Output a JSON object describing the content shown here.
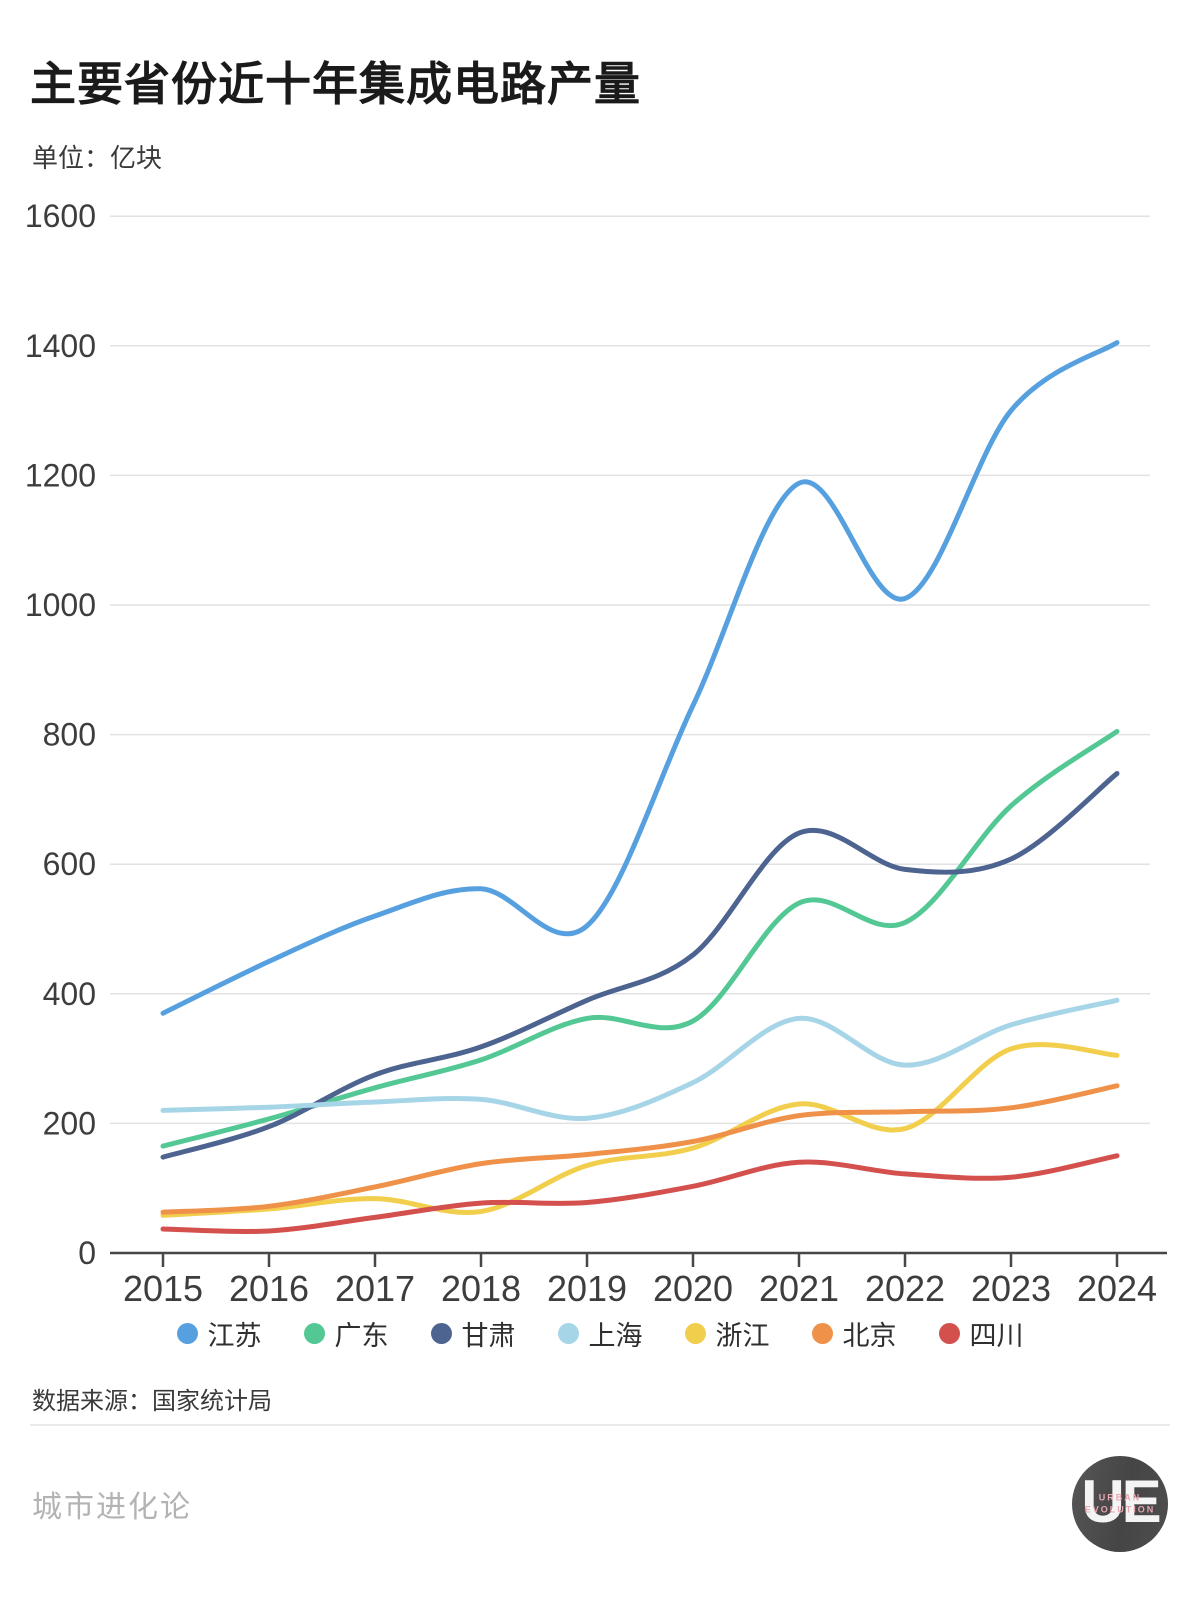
{
  "title": "主要省份近十年集成电路产量",
  "unit_label": "单位：亿块",
  "source_label": "数据来源：国家统计局",
  "watermark": "城市进化论",
  "logo": {
    "monogram": "UE",
    "line1": "URBAN",
    "line2": "EVOLUTION"
  },
  "chart_data": {
    "type": "line",
    "title": "主要省份近十年集成电路产量",
    "ylabel": "亿块",
    "x": [
      2015,
      2016,
      2017,
      2018,
      2019,
      2020,
      2021,
      2022,
      2023,
      2024
    ],
    "series": [
      {
        "name": "江苏",
        "color": "#57A0E0",
        "values": [
          370,
          450,
          520,
          562,
          505,
          845,
          1188,
          1010,
          1300,
          1405
        ]
      },
      {
        "name": "广东",
        "color": "#53C894",
        "values": [
          165,
          207,
          255,
          298,
          362,
          358,
          540,
          510,
          690,
          805
        ]
      },
      {
        "name": "甘肃",
        "color": "#4D6390",
        "values": [
          148,
          195,
          275,
          318,
          390,
          460,
          648,
          592,
          608,
          740
        ]
      },
      {
        "name": "上海",
        "color": "#A7D5E8",
        "values": [
          220,
          225,
          233,
          237,
          208,
          263,
          362,
          290,
          352,
          390
        ]
      },
      {
        "name": "浙江",
        "color": "#F2CE4D",
        "values": [
          58,
          68,
          84,
          64,
          135,
          162,
          230,
          192,
          315,
          305
        ]
      },
      {
        "name": "北京",
        "color": "#EF9149",
        "values": [
          63,
          72,
          102,
          138,
          152,
          172,
          212,
          218,
          224,
          258
        ]
      },
      {
        "name": "四川",
        "color": "#D3504D",
        "values": [
          37,
          34,
          55,
          77,
          78,
          103,
          140,
          122,
          117,
          150
        ]
      }
    ],
    "ylim": [
      0,
      1600
    ],
    "y_ticks": [
      0,
      200,
      400,
      600,
      800,
      1000,
      1200,
      1400,
      1600
    ],
    "grid": true,
    "legend_position": "bottom",
    "line_style": "smooth"
  },
  "colors": {
    "grid": "#e2e2e2",
    "axis": "#474747",
    "tick_label": "#3d3d3d",
    "title": "#1a1a1a",
    "watermark": "#b3b3b3",
    "divider": "#e9e9e9",
    "logo_bg": "#4b4b4b",
    "logo_caption": "#e8a7b0"
  }
}
